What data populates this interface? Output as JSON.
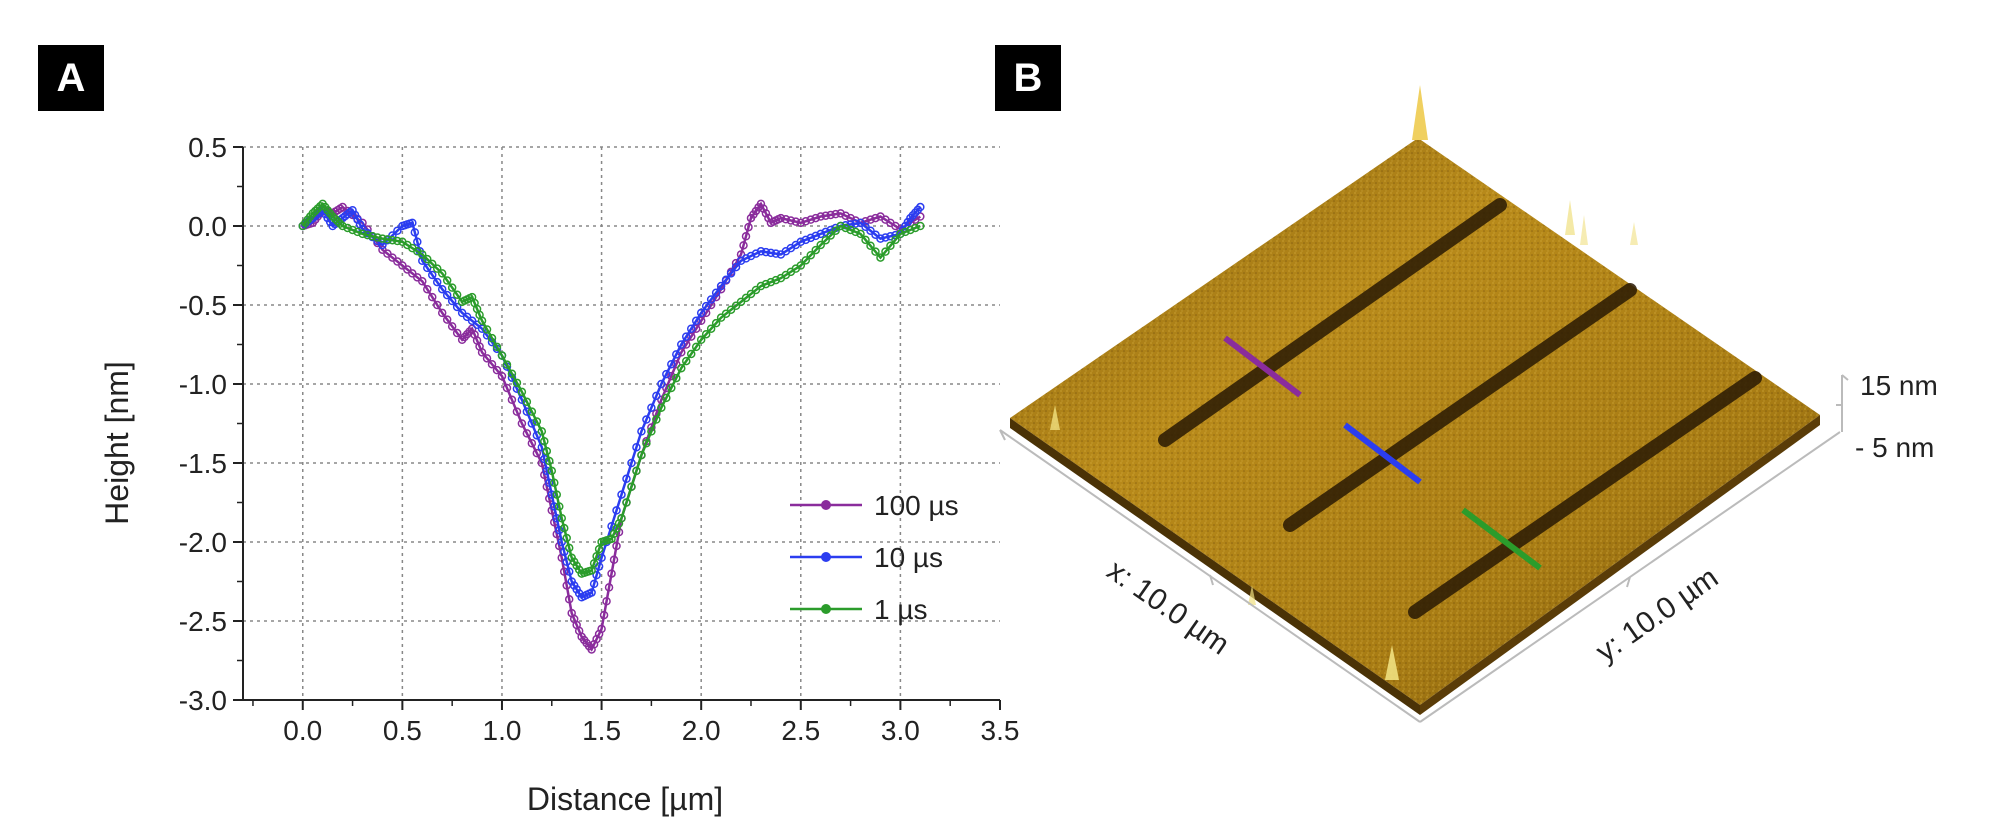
{
  "panels": {
    "a_label": "A",
    "b_label": "B"
  },
  "chart_data": {
    "type": "line",
    "title": "",
    "xlabel": "Distance [µm]",
    "ylabel": "Height [nm]",
    "xlim": [
      -0.3,
      3.5
    ],
    "ylim": [
      -3.0,
      0.5
    ],
    "xticks": [
      0.0,
      0.5,
      1.0,
      1.5,
      2.0,
      2.5,
      3.0,
      3.5
    ],
    "yticks": [
      0.5,
      0.0,
      -0.5,
      -1.0,
      -1.5,
      -2.0,
      -2.5,
      -3.0
    ],
    "xtick_labels": [
      "0.0",
      "0.5",
      "1.0",
      "1.5",
      "2.0",
      "2.5",
      "3.0",
      "3.5"
    ],
    "ytick_labels": [
      "0.5",
      "0.0",
      "-0.5",
      "-1.0",
      "-1.5",
      "-2.0",
      "-2.5",
      "-3.0"
    ],
    "grid": true,
    "legend_position": "lower-right",
    "series": [
      {
        "name": "100 µs",
        "color": "#8a2c9c",
        "x": [
          0.0,
          0.05,
          0.1,
          0.15,
          0.2,
          0.3,
          0.4,
          0.5,
          0.6,
          0.7,
          0.8,
          0.85,
          0.9,
          1.0,
          1.1,
          1.2,
          1.25,
          1.3,
          1.35,
          1.4,
          1.45,
          1.5,
          1.55,
          1.6,
          1.7,
          1.8,
          1.9,
          2.0,
          2.1,
          2.2,
          2.25,
          2.3,
          2.35,
          2.4,
          2.5,
          2.6,
          2.7,
          2.8,
          2.9,
          3.0,
          3.1
        ],
        "y": [
          0.0,
          0.02,
          0.1,
          0.08,
          0.12,
          0.02,
          -0.15,
          -0.25,
          -0.35,
          -0.55,
          -0.72,
          -0.65,
          -0.8,
          -0.95,
          -1.25,
          -1.5,
          -1.8,
          -2.1,
          -2.45,
          -2.6,
          -2.68,
          -2.55,
          -2.2,
          -1.85,
          -1.45,
          -1.1,
          -0.8,
          -0.6,
          -0.4,
          -0.18,
          0.05,
          0.14,
          0.02,
          0.05,
          0.02,
          0.06,
          0.08,
          0.02,
          0.06,
          -0.02,
          0.06
        ]
      },
      {
        "name": "10 µs",
        "color": "#2b3df0",
        "x": [
          0.0,
          0.05,
          0.1,
          0.15,
          0.2,
          0.25,
          0.3,
          0.4,
          0.5,
          0.55,
          0.6,
          0.7,
          0.8,
          0.9,
          1.0,
          1.1,
          1.2,
          1.25,
          1.3,
          1.35,
          1.4,
          1.45,
          1.5,
          1.6,
          1.7,
          1.8,
          1.9,
          2.0,
          2.1,
          2.2,
          2.3,
          2.4,
          2.5,
          2.6,
          2.7,
          2.8,
          2.9,
          3.0,
          3.05,
          3.1
        ],
        "y": [
          0.0,
          0.05,
          0.1,
          0.0,
          0.05,
          0.1,
          -0.02,
          -0.12,
          0.0,
          0.02,
          -0.22,
          -0.4,
          -0.55,
          -0.65,
          -0.82,
          -1.1,
          -1.4,
          -1.7,
          -2.0,
          -2.25,
          -2.35,
          -2.32,
          -2.1,
          -1.7,
          -1.3,
          -1.0,
          -0.75,
          -0.55,
          -0.38,
          -0.22,
          -0.16,
          -0.18,
          -0.1,
          -0.05,
          0.0,
          0.02,
          -0.08,
          -0.05,
          0.05,
          0.12
        ]
      },
      {
        "name": "1 µs",
        "color": "#2b9c2b",
        "x": [
          0.0,
          0.05,
          0.1,
          0.15,
          0.2,
          0.3,
          0.4,
          0.5,
          0.6,
          0.7,
          0.8,
          0.85,
          0.9,
          1.0,
          1.1,
          1.2,
          1.25,
          1.3,
          1.35,
          1.4,
          1.45,
          1.5,
          1.55,
          1.6,
          1.7,
          1.8,
          1.9,
          2.0,
          2.1,
          2.2,
          2.3,
          2.4,
          2.5,
          2.6,
          2.7,
          2.8,
          2.9,
          3.0,
          3.1
        ],
        "y": [
          0.0,
          0.08,
          0.14,
          0.06,
          0.0,
          -0.05,
          -0.08,
          -0.1,
          -0.18,
          -0.3,
          -0.48,
          -0.45,
          -0.6,
          -0.82,
          -1.05,
          -1.3,
          -1.55,
          -1.85,
          -2.1,
          -2.2,
          -2.18,
          -2.0,
          -1.98,
          -1.85,
          -1.45,
          -1.15,
          -0.9,
          -0.72,
          -0.58,
          -0.48,
          -0.38,
          -0.33,
          -0.25,
          -0.12,
          0.0,
          -0.05,
          -0.2,
          -0.05,
          0.0
        ]
      }
    ]
  },
  "afm_image": {
    "x_axis_label": "x: 10.0 µm",
    "y_axis_label": "y: 10.0 µm",
    "z_scale_top": "15 nm",
    "z_scale_bottom": "- 5 nm",
    "line_colors": [
      "#8a2c9c",
      "#2b3df0",
      "#2b9c2b"
    ]
  }
}
